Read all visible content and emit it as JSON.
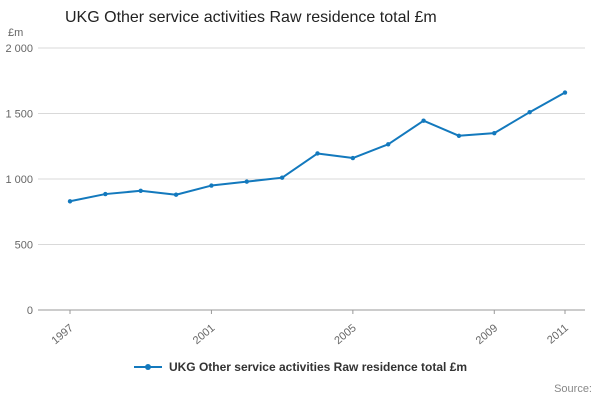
{
  "header": {
    "title": "UKG Other service activities Raw residence total £m"
  },
  "legend": {
    "label": "UKG Other service activities Raw residence total £m"
  },
  "footer": {
    "source_label": "Source:"
  },
  "colors": {
    "line": "#1379bd",
    "grid": "#d9d9d9",
    "axis_line": "#999999",
    "axis_text": "#666666"
  },
  "chart_data": {
    "type": "line",
    "title": "UKG Other service activities Raw residence total £m",
    "xlabel": "",
    "ylabel": "£m",
    "ylim": [
      0,
      2000
    ],
    "x": [
      1997,
      1998,
      1999,
      2000,
      2001,
      2002,
      2003,
      2004,
      2005,
      2006,
      2007,
      2008,
      2009,
      2010,
      2011
    ],
    "series": [
      {
        "name": "UKG Other service activities Raw residence total £m",
        "values": [
          830,
          885,
          910,
          880,
          950,
          980,
          1010,
          1195,
          1160,
          1265,
          1445,
          1330,
          1350,
          1510,
          1660
        ]
      }
    ],
    "xticks": [
      1997,
      2001,
      2005,
      2009,
      2011
    ],
    "yticks": [
      0,
      500,
      1000,
      1500,
      2000
    ],
    "ytick_labels": [
      "0",
      "500",
      "1 000",
      "1 500",
      "2 000"
    ],
    "grid": "horizontal",
    "legend_position": "bottom",
    "markers": true
  }
}
